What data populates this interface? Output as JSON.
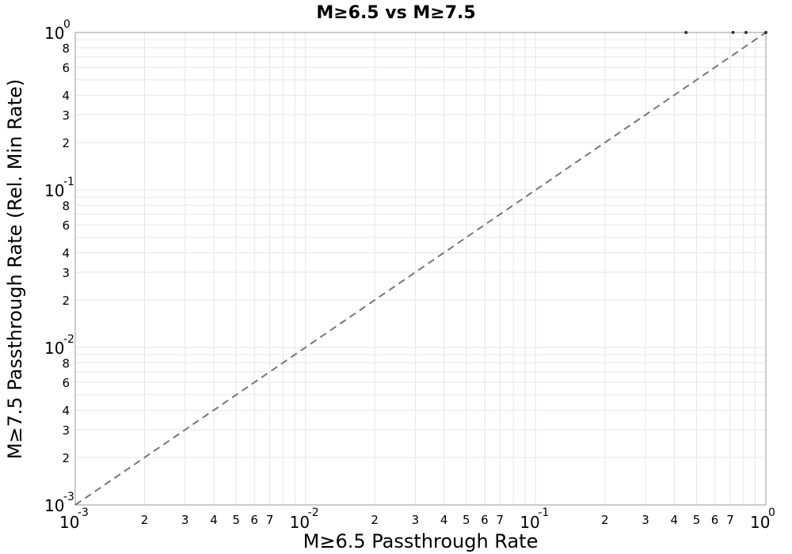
{
  "chart_data": {
    "type": "scatter",
    "title": "M≥6.5 vs M≥7.5",
    "xlabel": "M≥6.5 Passthrough Rate",
    "ylabel": "M≥7.5 Passthrough Rate (Rel. Min Rate)",
    "xscale": "log",
    "yscale": "log",
    "xlim": [
      0.001,
      1
    ],
    "ylim": [
      0.001,
      1
    ],
    "grid": true,
    "major_ticks": [
      {
        "value": 0.001,
        "base": "10",
        "exp": "-3"
      },
      {
        "value": 0.01,
        "base": "10",
        "exp": "-2"
      },
      {
        "value": 0.1,
        "base": "10",
        "exp": "-1"
      },
      {
        "value": 1,
        "base": "10",
        "exp": "0"
      }
    ],
    "minor_ticks": [
      {
        "mult": 2,
        "label": "2"
      },
      {
        "mult": 3,
        "label": "3"
      },
      {
        "mult": 4,
        "label": "4"
      },
      {
        "mult": 5,
        "label": "5"
      },
      {
        "mult": 6,
        "label": "6"
      },
      {
        "mult": 7,
        "label": "7"
      },
      {
        "mult": 8,
        "label": "8"
      }
    ],
    "x_minor_labeled": [
      2,
      3,
      4,
      5,
      6,
      7
    ],
    "y_minor_labeled": [
      2,
      3,
      4,
      6,
      8
    ],
    "reference_line": {
      "style": "dashed",
      "from": [
        0.001,
        0.001
      ],
      "to": [
        1,
        1
      ],
      "color": "#777777"
    },
    "series": [
      {
        "points": [
          [
            0.45,
            1
          ],
          [
            0.72,
            1
          ],
          [
            0.82,
            1
          ],
          [
            1,
            1
          ]
        ]
      }
    ]
  }
}
